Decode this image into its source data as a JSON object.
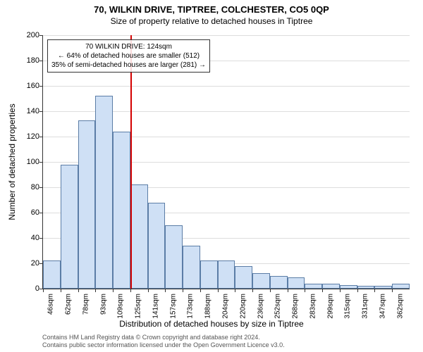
{
  "title": "70, WILKIN DRIVE, TIPTREE, COLCHESTER, CO5 0QP",
  "subtitle": "Size of property relative to detached houses in Tiptree",
  "y_axis_label": "Number of detached properties",
  "x_axis_label": "Distribution of detached houses by size in Tiptree",
  "chart": {
    "type": "histogram",
    "ylim": [
      0,
      200
    ],
    "ytick_step": 20,
    "bar_fill": "#cfe0f5",
    "bar_border": "#5b7da6",
    "grid_color": "#dddddd",
    "x_unit": "sqm",
    "x_start": 46,
    "x_step": 15.67,
    "categories": [
      "46sqm",
      "62sqm",
      "78sqm",
      "93sqm",
      "109sqm",
      "125sqm",
      "141sqm",
      "157sqm",
      "173sqm",
      "188sqm",
      "204sqm",
      "220sqm",
      "236sqm",
      "252sqm",
      "268sqm",
      "283sqm",
      "299sqm",
      "315sqm",
      "331sqm",
      "347sqm",
      "362sqm"
    ],
    "values": [
      22,
      98,
      133,
      152,
      124,
      82,
      68,
      50,
      34,
      22,
      22,
      18,
      12,
      10,
      9,
      4,
      4,
      3,
      2,
      2,
      4
    ]
  },
  "marker": {
    "color": "#d40000",
    "position_category_index": 5,
    "annotation_lines": [
      "70 WILKIN DRIVE: 124sqm",
      "← 64% of detached houses are smaller (512)",
      "35% of semi-detached houses are larger (281) →"
    ]
  },
  "footer_lines": [
    "Contains HM Land Registry data © Crown copyright and database right 2024.",
    "Contains public sector information licensed under the Open Government Licence v3.0."
  ],
  "fonts": {
    "title_size": 13,
    "subtitle_size": 12,
    "axis_label_size": 12,
    "tick_size": 11,
    "x_tick_size": 10,
    "annotation_size": 10,
    "footer_size": 9
  }
}
